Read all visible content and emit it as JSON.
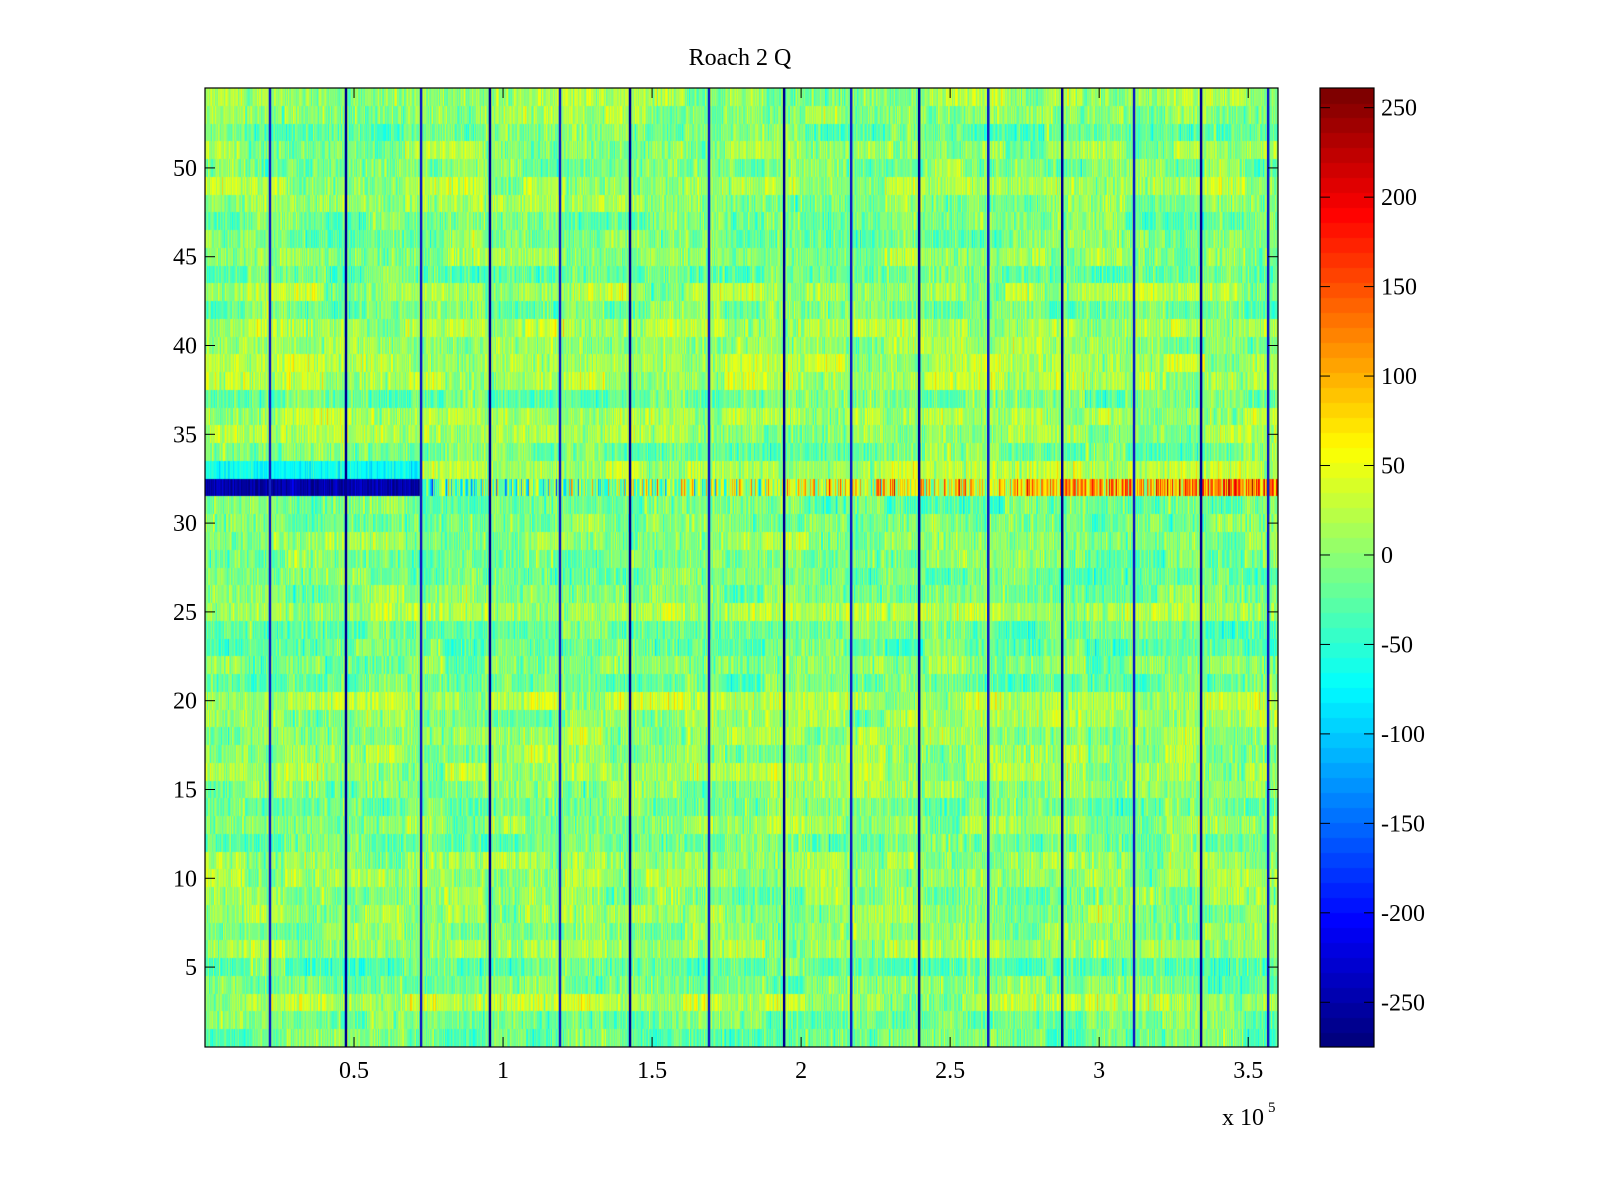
{
  "chart_data": {
    "type": "heatmap",
    "title": "Roach 2 Q",
    "xlabel": "",
    "ylabel": "",
    "x_multiplier_label": "x 10",
    "x_multiplier_exponent": "5",
    "xlim": [
      0,
      3.6
    ],
    "ylim": [
      0.5,
      54.5
    ],
    "rows": 54,
    "xticks": [
      0.5,
      1,
      1.5,
      2,
      2.5,
      3,
      3.5
    ],
    "xtick_labels": [
      "0.5",
      "1",
      "1.5",
      "2",
      "2.5",
      "3",
      "3.5"
    ],
    "yticks": [
      5,
      10,
      15,
      20,
      25,
      30,
      35,
      40,
      45,
      50
    ],
    "ytick_labels": [
      "5",
      "10",
      "15",
      "20",
      "25",
      "30",
      "35",
      "40",
      "45",
      "50"
    ],
    "colormap": "jet",
    "clim": [
      -275,
      261
    ],
    "colorbar_ticks": [
      -250,
      -200,
      -150,
      -100,
      -50,
      0,
      50,
      100,
      150,
      200,
      250
    ],
    "colorbar_tick_labels": [
      "-250",
      "-200",
      "-150",
      "-100",
      "-50",
      "0",
      "50",
      "100",
      "150",
      "200",
      "250"
    ],
    "vertical_discontinuities_x": [
      0.218,
      0.473,
      0.725,
      0.956,
      1.191,
      1.426,
      1.691,
      1.943,
      2.168,
      2.396,
      2.628,
      2.876,
      3.117,
      3.342,
      3.567
    ],
    "anomalous_row": {
      "row": 32,
      "left_value": -250,
      "right_value": 150
    },
    "typical_value_range": [
      -80,
      80
    ]
  }
}
